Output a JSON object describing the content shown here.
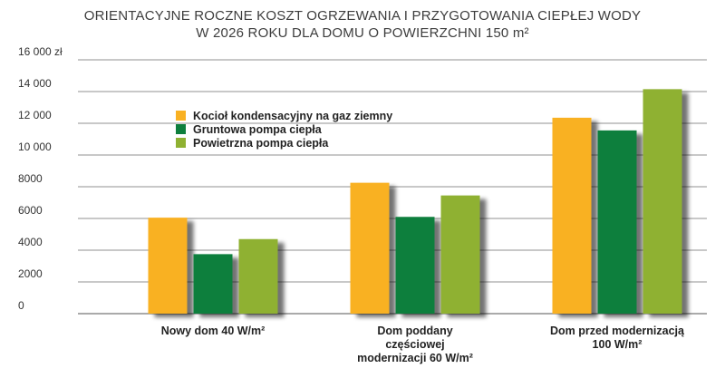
{
  "chart_data": {
    "type": "bar",
    "title_lines": [
      "ORIENTACYJNE ROCZNE KOSZT OGRZEWANIA I PRZYGOTOWANIA CIEPŁEJ WODY",
      "W 2026 ROKU DLA DOMU O POWIERZCHNI 150 m²"
    ],
    "categories": [
      [
        "Nowy dom 40 W/m²"
      ],
      [
        "Dom poddany",
        "częściowej",
        "modernizacji 60 W/m²"
      ],
      [
        "Dom przed modernizacją",
        "100 W/m²"
      ]
    ],
    "series": [
      {
        "name": "Kocioł kondensacyjny na gaz ziemny",
        "color": "#f9b122",
        "values": [
          6050,
          8250,
          12350
        ]
      },
      {
        "name": "Gruntowa pompa ciepła",
        "color": "#0e7f3d",
        "values": [
          3750,
          6100,
          11550
        ]
      },
      {
        "name": "Powietrzna pompa ciepła",
        "color": "#8fb132",
        "values": [
          4700,
          7450,
          14150
        ]
      }
    ],
    "yticks": [
      {
        "value": 0,
        "label": "0"
      },
      {
        "value": 2000,
        "label": "2000"
      },
      {
        "value": 4000,
        "label": "4000"
      },
      {
        "value": 6000,
        "label": "6000"
      },
      {
        "value": 8000,
        "label": "8000"
      },
      {
        "value": 10000,
        "label": "10 000"
      },
      {
        "value": 12000,
        "label": "12 000"
      },
      {
        "value": 14000,
        "label": "14 000"
      },
      {
        "value": 16000,
        "label": "16 000 zł"
      }
    ],
    "ylim": [
      0,
      16000
    ],
    "grid": true,
    "legend_position": "top-left inside plot",
    "shadow_color": "#555555"
  }
}
